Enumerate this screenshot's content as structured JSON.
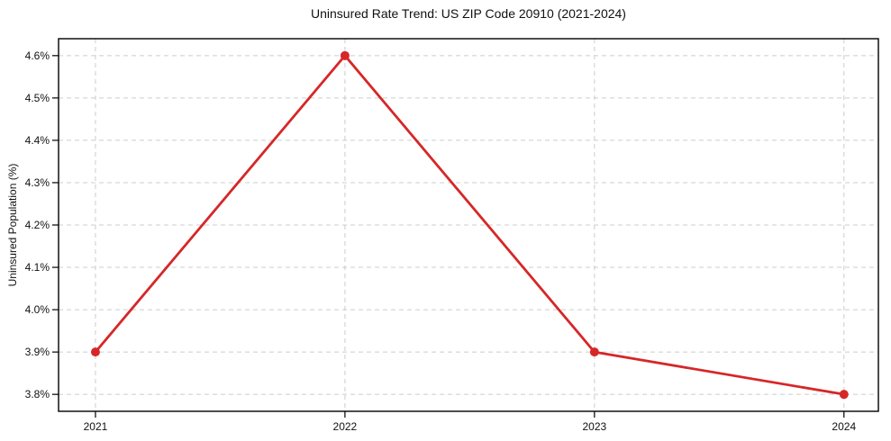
{
  "chart_data": {
    "type": "line",
    "title": "Uninsured Rate Trend: US ZIP Code 20910 (2021-2024)",
    "xlabel": "",
    "ylabel": "Uninsured Population (%)",
    "categories": [
      "2021",
      "2022",
      "2023",
      "2024"
    ],
    "series": [
      {
        "name": "uninsured-rate",
        "values": [
          3.9,
          4.6,
          3.9,
          3.8
        ],
        "color": "#d62728",
        "marker": "circle",
        "line_width": 2.8,
        "marker_radius": 5
      }
    ],
    "yticks": [
      3.8,
      3.9,
      4.0,
      4.1,
      4.2,
      4.3,
      4.4,
      4.5,
      4.6
    ],
    "ytick_suffix": "%",
    "ytick_decimals": 1,
    "ylim": [
      3.76,
      4.64
    ],
    "grid": true,
    "grid_style": "dashed",
    "grid_color": "#cccccc",
    "axis_color": "#000000",
    "background_color": "#ffffff",
    "legend_position": "none"
  }
}
